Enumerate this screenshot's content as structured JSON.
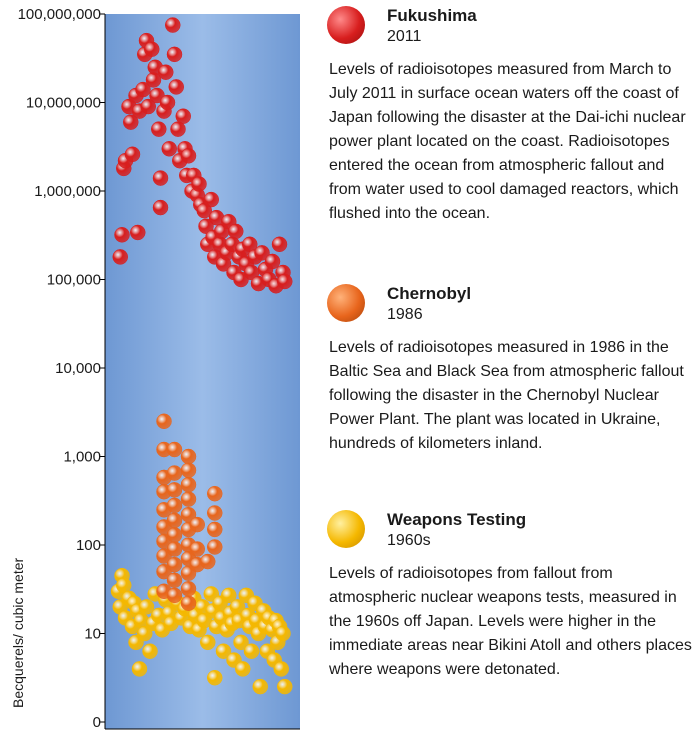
{
  "chart_data": {
    "type": "scatter",
    "y_scale": "log",
    "ylabel": "Becquerels/ cubic meter",
    "y_ticks": [
      {
        "value": 100000000,
        "label": "100,000,000"
      },
      {
        "value": 10000000,
        "label": "10,000,000"
      },
      {
        "value": 1000000,
        "label": "1,000,000"
      },
      {
        "value": 100000,
        "label": "100,000"
      },
      {
        "value": 10000,
        "label": "10,000"
      },
      {
        "value": 1000,
        "label": "1,000"
      },
      {
        "value": 100,
        "label": "100"
      },
      {
        "value": 10,
        "label": "10"
      },
      {
        "value": 0,
        "label": "0"
      }
    ],
    "grid": false,
    "background": "#7fa7dc",
    "series": [
      {
        "name": "Fukushima",
        "year": "2011",
        "color": "#d81e1e",
        "description": "Levels of radioisotopes measured from March to July 2011 in surface ocean waters off the coast of Japan following the disaster at the Dai-ichi nuclear power plant located on the coast. Radioisotopes entered the ocean from atmospheric fallout and from water used to cool damaged reactors, which flushed into the ocean.",
        "values": [
          {
            "x": 0.03,
            "y": 180000
          },
          {
            "x": 0.04,
            "y": 320000
          },
          {
            "x": 0.05,
            "y": 1800000
          },
          {
            "x": 0.06,
            "y": 2200000
          },
          {
            "x": 0.08,
            "y": 9000000
          },
          {
            "x": 0.09,
            "y": 6000000
          },
          {
            "x": 0.1,
            "y": 2600000
          },
          {
            "x": 0.12,
            "y": 12000000
          },
          {
            "x": 0.13,
            "y": 340000
          },
          {
            "x": 0.14,
            "y": 8000000
          },
          {
            "x": 0.16,
            "y": 14000000
          },
          {
            "x": 0.17,
            "y": 35000000
          },
          {
            "x": 0.18,
            "y": 50000000
          },
          {
            "x": 0.19,
            "y": 9000000
          },
          {
            "x": 0.21,
            "y": 40000000
          },
          {
            "x": 0.22,
            "y": 18000000
          },
          {
            "x": 0.23,
            "y": 25000000
          },
          {
            "x": 0.24,
            "y": 12000000
          },
          {
            "x": 0.25,
            "y": 5000000
          },
          {
            "x": 0.26,
            "y": 650000
          },
          {
            "x": 0.26,
            "y": 1400000
          },
          {
            "x": 0.28,
            "y": 8000000
          },
          {
            "x": 0.29,
            "y": 22000000
          },
          {
            "x": 0.3,
            "y": 10000000
          },
          {
            "x": 0.31,
            "y": 3000000
          },
          {
            "x": 0.33,
            "y": 75000000
          },
          {
            "x": 0.34,
            "y": 35000000
          },
          {
            "x": 0.35,
            "y": 15000000
          },
          {
            "x": 0.36,
            "y": 5000000
          },
          {
            "x": 0.37,
            "y": 2200000
          },
          {
            "x": 0.39,
            "y": 7000000
          },
          {
            "x": 0.4,
            "y": 3000000
          },
          {
            "x": 0.41,
            "y": 1500000
          },
          {
            "x": 0.42,
            "y": 2500000
          },
          {
            "x": 0.44,
            "y": 1000000
          },
          {
            "x": 0.45,
            "y": 1500000
          },
          {
            "x": 0.47,
            "y": 900000
          },
          {
            "x": 0.48,
            "y": 1200000
          },
          {
            "x": 0.49,
            "y": 700000
          },
          {
            "x": 0.51,
            "y": 600000
          },
          {
            "x": 0.52,
            "y": 400000
          },
          {
            "x": 0.53,
            "y": 250000
          },
          {
            "x": 0.55,
            "y": 800000
          },
          {
            "x": 0.56,
            "y": 300000
          },
          {
            "x": 0.57,
            "y": 180000
          },
          {
            "x": 0.58,
            "y": 500000
          },
          {
            "x": 0.6,
            "y": 250000
          },
          {
            "x": 0.61,
            "y": 350000
          },
          {
            "x": 0.62,
            "y": 150000
          },
          {
            "x": 0.64,
            "y": 200000
          },
          {
            "x": 0.65,
            "y": 450000
          },
          {
            "x": 0.67,
            "y": 250000
          },
          {
            "x": 0.68,
            "y": 120000
          },
          {
            "x": 0.69,
            "y": 350000
          },
          {
            "x": 0.71,
            "y": 180000
          },
          {
            "x": 0.72,
            "y": 100000
          },
          {
            "x": 0.73,
            "y": 220000
          },
          {
            "x": 0.75,
            "y": 150000
          },
          {
            "x": 0.77,
            "y": 250000
          },
          {
            "x": 0.78,
            "y": 120000
          },
          {
            "x": 0.8,
            "y": 180000
          },
          {
            "x": 0.82,
            "y": 90000
          },
          {
            "x": 0.84,
            "y": 200000
          },
          {
            "x": 0.86,
            "y": 130000
          },
          {
            "x": 0.88,
            "y": 100000
          },
          {
            "x": 0.9,
            "y": 160000
          },
          {
            "x": 0.92,
            "y": 85000
          },
          {
            "x": 0.94,
            "y": 250000
          },
          {
            "x": 0.96,
            "y": 120000
          },
          {
            "x": 0.97,
            "y": 95000
          }
        ]
      },
      {
        "name": "Chernobyl",
        "year": "1986",
        "color": "#e8651c",
        "description": "Levels of radioisotopes measured in 1986 in the Baltic Sea and Black Sea from atmospheric fallout following the disaster in the Chernobyl Nuclear Power Plant. The plant was located in Ukraine, hundreds of kilometers inland.",
        "values": [
          {
            "x": 0.28,
            "y": 2500
          },
          {
            "x": 0.28,
            "y": 1200
          },
          {
            "x": 0.28,
            "y": 580
          },
          {
            "x": 0.28,
            "y": 400
          },
          {
            "x": 0.28,
            "y": 250
          },
          {
            "x": 0.28,
            "y": 160
          },
          {
            "x": 0.28,
            "y": 110
          },
          {
            "x": 0.28,
            "y": 75
          },
          {
            "x": 0.28,
            "y": 50
          },
          {
            "x": 0.28,
            "y": 30
          },
          {
            "x": 0.34,
            "y": 1200
          },
          {
            "x": 0.34,
            "y": 650
          },
          {
            "x": 0.34,
            "y": 420
          },
          {
            "x": 0.34,
            "y": 280
          },
          {
            "x": 0.34,
            "y": 190
          },
          {
            "x": 0.34,
            "y": 130
          },
          {
            "x": 0.34,
            "y": 90
          },
          {
            "x": 0.34,
            "y": 60
          },
          {
            "x": 0.34,
            "y": 40
          },
          {
            "x": 0.34,
            "y": 27
          },
          {
            "x": 0.42,
            "y": 1000
          },
          {
            "x": 0.42,
            "y": 700
          },
          {
            "x": 0.42,
            "y": 480
          },
          {
            "x": 0.42,
            "y": 330
          },
          {
            "x": 0.42,
            "y": 220
          },
          {
            "x": 0.42,
            "y": 150
          },
          {
            "x": 0.42,
            "y": 100
          },
          {
            "x": 0.42,
            "y": 70
          },
          {
            "x": 0.42,
            "y": 48
          },
          {
            "x": 0.42,
            "y": 32
          },
          {
            "x": 0.42,
            "y": 22
          },
          {
            "x": 0.47,
            "y": 170
          },
          {
            "x": 0.47,
            "y": 90
          },
          {
            "x": 0.47,
            "y": 60
          },
          {
            "x": 0.53,
            "y": 65
          },
          {
            "x": 0.57,
            "y": 380
          },
          {
            "x": 0.57,
            "y": 230
          },
          {
            "x": 0.57,
            "y": 150
          },
          {
            "x": 0.57,
            "y": 95
          }
        ]
      },
      {
        "name": "Weapons Testing",
        "year": "1960s",
        "color": "#f5b800",
        "description": "Levels of radioisotopes from fallout from atmospheric nuclear weapons tests, measured in the 1960s off Japan. Levels were higher in the immediate areas near Bikini Atoll and others places where weapons were detonated.",
        "values": [
          {
            "x": 0.02,
            "y": 30
          },
          {
            "x": 0.03,
            "y": 20
          },
          {
            "x": 0.04,
            "y": 45
          },
          {
            "x": 0.05,
            "y": 35
          },
          {
            "x": 0.06,
            "y": 15
          },
          {
            "x": 0.08,
            "y": 25
          },
          {
            "x": 0.1,
            "y": 12
          },
          {
            "x": 0.11,
            "y": 22
          },
          {
            "x": 0.12,
            "y": 9
          },
          {
            "x": 0.13,
            "y": 18
          },
          {
            "x": 0.14,
            "y": 6
          },
          {
            "x": 0.15,
            "y": 14
          },
          {
            "x": 0.17,
            "y": 10
          },
          {
            "x": 0.18,
            "y": 20
          },
          {
            "x": 0.2,
            "y": 8
          },
          {
            "x": 0.22,
            "y": 13
          },
          {
            "x": 0.23,
            "y": 28
          },
          {
            "x": 0.25,
            "y": 16
          },
          {
            "x": 0.27,
            "y": 11
          },
          {
            "x": 0.29,
            "y": 24
          },
          {
            "x": 0.31,
            "y": 17
          },
          {
            "x": 0.32,
            "y": 13
          },
          {
            "x": 0.36,
            "y": 22
          },
          {
            "x": 0.38,
            "y": 15
          },
          {
            "x": 0.4,
            "y": 19
          },
          {
            "x": 0.43,
            "y": 12
          },
          {
            "x": 0.45,
            "y": 25
          },
          {
            "x": 0.46,
            "y": 16
          },
          {
            "x": 0.48,
            "y": 11
          },
          {
            "x": 0.5,
            "y": 20
          },
          {
            "x": 0.51,
            "y": 14
          },
          {
            "x": 0.53,
            "y": 9
          },
          {
            "x": 0.55,
            "y": 28
          },
          {
            "x": 0.56,
            "y": 18
          },
          {
            "x": 0.57,
            "y": 5
          },
          {
            "x": 0.58,
            "y": 12
          },
          {
            "x": 0.6,
            "y": 22
          },
          {
            "x": 0.61,
            "y": 15
          },
          {
            "x": 0.62,
            "y": 8
          },
          {
            "x": 0.64,
            "y": 11
          },
          {
            "x": 0.65,
            "y": 27
          },
          {
            "x": 0.66,
            "y": 17
          },
          {
            "x": 0.67,
            "y": 13
          },
          {
            "x": 0.68,
            "y": 7
          },
          {
            "x": 0.7,
            "y": 20
          },
          {
            "x": 0.71,
            "y": 14
          },
          {
            "x": 0.72,
            "y": 9
          },
          {
            "x": 0.73,
            "y": 6
          },
          {
            "x": 0.75,
            "y": 27
          },
          {
            "x": 0.76,
            "y": 16
          },
          {
            "x": 0.77,
            "y": 12
          },
          {
            "x": 0.78,
            "y": 8
          },
          {
            "x": 0.8,
            "y": 22
          },
          {
            "x": 0.81,
            "y": 14
          },
          {
            "x": 0.82,
            "y": 10
          },
          {
            "x": 0.83,
            "y": 4
          },
          {
            "x": 0.85,
            "y": 18
          },
          {
            "x": 0.86,
            "y": 12
          },
          {
            "x": 0.87,
            "y": 8
          },
          {
            "x": 0.88,
            "y": 15
          },
          {
            "x": 0.9,
            "y": 11
          },
          {
            "x": 0.91,
            "y": 7
          },
          {
            "x": 0.92,
            "y": 14
          },
          {
            "x": 0.93,
            "y": 9
          },
          {
            "x": 0.94,
            "y": 12
          },
          {
            "x": 0.95,
            "y": 6
          },
          {
            "x": 0.96,
            "y": 10
          },
          {
            "x": 0.97,
            "y": 4
          }
        ]
      }
    ]
  }
}
